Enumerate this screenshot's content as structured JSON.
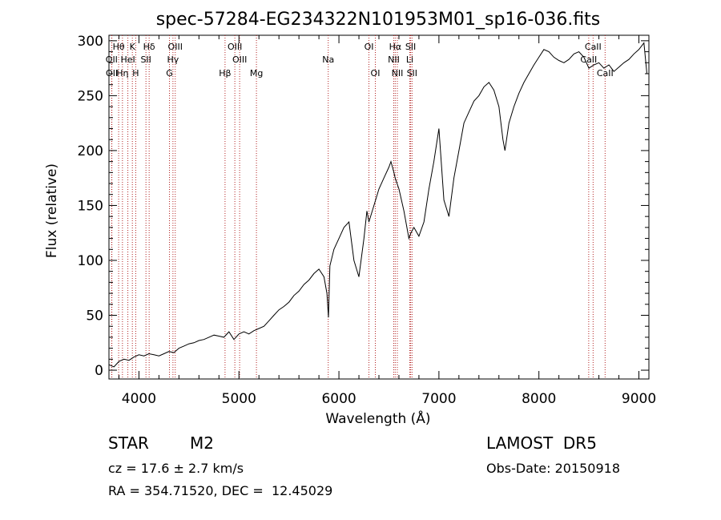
{
  "chart_data": {
    "type": "line",
    "title": "spec-57284-EG234322N101953M01_sp16-036.fits",
    "xlabel": "Wavelength (Å)",
    "ylabel": "Flux (relative)",
    "xlim": [
      3700,
      9100
    ],
    "ylim": [
      -8,
      305
    ],
    "xticks": [
      4000,
      5000,
      6000,
      7000,
      8000,
      9000
    ],
    "yticks": [
      0,
      50,
      100,
      150,
      200,
      250,
      300
    ],
    "grid": false,
    "series": [
      {
        "x": [
          3700,
          3750,
          3800,
          3850,
          3900,
          3950,
          4000,
          4050,
          4100,
          4150,
          4200,
          4250,
          4300,
          4350,
          4400,
          4450,
          4500,
          4550,
          4600,
          4650,
          4700,
          4750,
          4800,
          4850,
          4900,
          4950,
          5000,
          5050,
          5100,
          5150,
          5200,
          5250,
          5300,
          5350,
          5400,
          5450,
          5500,
          5550,
          5600,
          5650,
          5700,
          5750,
          5800,
          5850,
          5880,
          5895,
          5910,
          5950,
          6000,
          6050,
          6100,
          6150,
          6200,
          6250,
          6280,
          6300,
          6350,
          6400,
          6450,
          6500,
          6520,
          6550,
          6563,
          6600,
          6650,
          6700,
          6720,
          6750,
          6800,
          6850,
          6900,
          6950,
          7000,
          7050,
          7100,
          7150,
          7200,
          7250,
          7300,
          7350,
          7400,
          7450,
          7500,
          7550,
          7600,
          7640,
          7660,
          7700,
          7750,
          7800,
          7850,
          7900,
          7950,
          8000,
          8050,
          8100,
          8150,
          8200,
          8250,
          8300,
          8350,
          8400,
          8450,
          8500,
          8550,
          8600,
          8650,
          8700,
          8750,
          8800,
          8850,
          8900,
          8950,
          9000,
          9050,
          9080
        ],
        "values": [
          5,
          3,
          8,
          10,
          9,
          12,
          14,
          13,
          15,
          14,
          13,
          15,
          17,
          16,
          20,
          22,
          24,
          25,
          27,
          28,
          30,
          32,
          31,
          30,
          35,
          28,
          33,
          35,
          33,
          36,
          38,
          40,
          45,
          50,
          55,
          58,
          62,
          68,
          72,
          78,
          82,
          88,
          92,
          85,
          70,
          48,
          95,
          110,
          120,
          130,
          135,
          100,
          85,
          120,
          145,
          135,
          150,
          165,
          175,
          185,
          190,
          180,
          175,
          165,
          145,
          120,
          125,
          130,
          122,
          135,
          165,
          190,
          220,
          155,
          140,
          175,
          200,
          225,
          235,
          245,
          250,
          258,
          262,
          255,
          240,
          210,
          200,
          225,
          240,
          252,
          262,
          270,
          278,
          285,
          292,
          290,
          285,
          282,
          280,
          283,
          288,
          290,
          285,
          275,
          278,
          280,
          275,
          278,
          272,
          276,
          280,
          283,
          288,
          292,
          298,
          270
        ]
      }
    ],
    "lines": [
      {
        "label": "Hθ",
        "x": 3797,
        "row": 1
      },
      {
        "label": "OII",
        "x": 3727,
        "row": 2
      },
      {
        "label": "OII",
        "x": 3729,
        "row": 3
      },
      {
        "label": "K",
        "x": 3934,
        "row": 1
      },
      {
        "label": "HeI",
        "x": 3889,
        "row": 2
      },
      {
        "label": "Hη",
        "x": 3835,
        "row": 3
      },
      {
        "label": "Hδ",
        "x": 4102,
        "row": 1
      },
      {
        "label": "SII",
        "x": 4070,
        "row": 2
      },
      {
        "label": "H",
        "x": 3968,
        "row": 3
      },
      {
        "label": "OIII",
        "x": 4363,
        "row": 1
      },
      {
        "label": "Hγ",
        "x": 4340,
        "row": 2
      },
      {
        "label": "G",
        "x": 4305,
        "row": 3
      },
      {
        "label": "OIII",
        "x": 4959,
        "row": 1
      },
      {
        "label": "OIII",
        "x": 5007,
        "row": 2
      },
      {
        "label": "Hβ",
        "x": 4861,
        "row": 3
      },
      {
        "label": "Mg",
        "x": 5175,
        "row": 3
      },
      {
        "label": "Na",
        "x": 5893,
        "row": 2
      },
      {
        "label": "OI",
        "x": 6300,
        "row": 1
      },
      {
        "label": "OI",
        "x": 6364,
        "row": 3
      },
      {
        "label": "Hα",
        "x": 6563,
        "row": 1
      },
      {
        "label": "NII",
        "x": 6548,
        "row": 2
      },
      {
        "label": "NII",
        "x": 6584,
        "row": 3
      },
      {
        "label": "SII",
        "x": 6717,
        "row": 1
      },
      {
        "label": "Li",
        "x": 6708,
        "row": 2
      },
      {
        "label": "SII",
        "x": 6731,
        "row": 3
      },
      {
        "label": "CaII",
        "x": 8542,
        "row": 1
      },
      {
        "label": "CaII",
        "x": 8498,
        "row": 2
      },
      {
        "label": "CaII",
        "x": 8662,
        "row": 3
      }
    ]
  },
  "info": {
    "class": "STAR",
    "subclass": "M2",
    "survey": "LAMOST  DR5",
    "cz": "cz = 17.6 ± 2.7 km/s",
    "obs_date": "Obs-Date: 20150918",
    "radec": "RA = 354.71520, DEC =  12.45029"
  }
}
